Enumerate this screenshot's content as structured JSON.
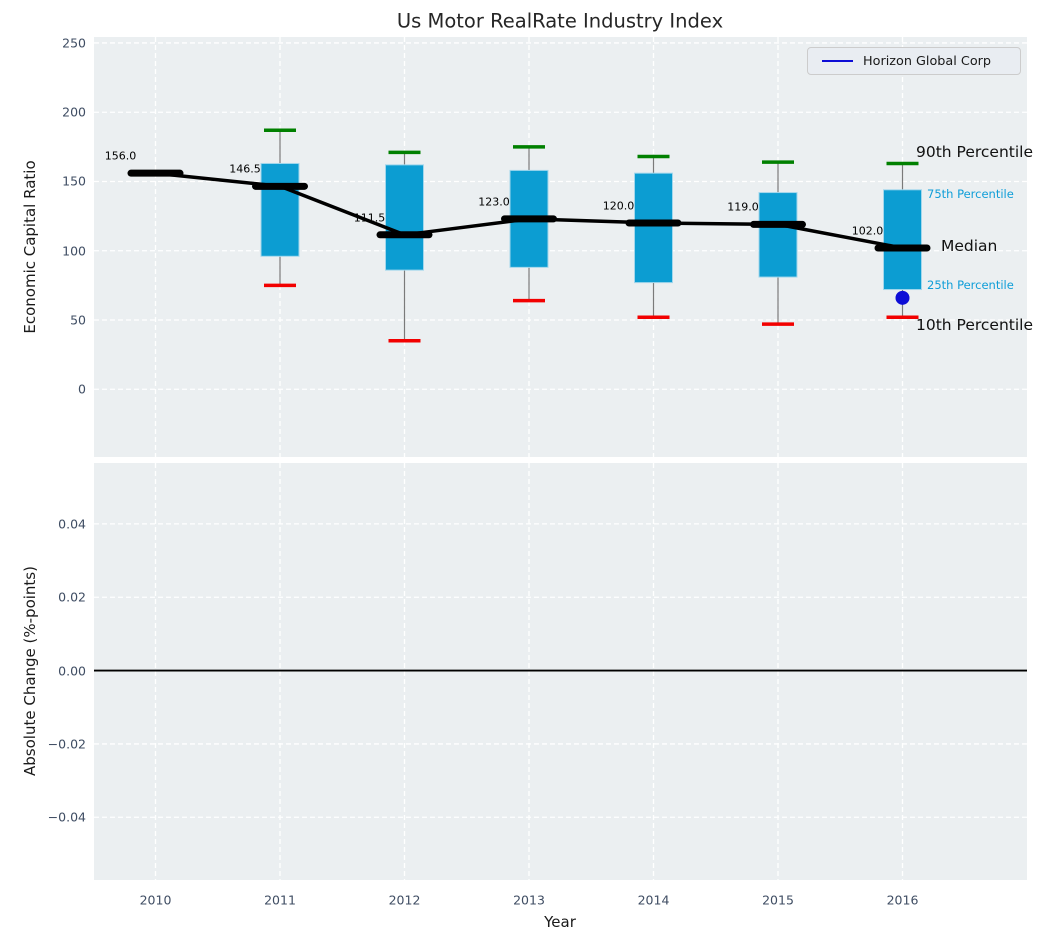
{
  "title": "Us Motor RealRate Industry Index",
  "legend": {
    "label": "Horizon Global Corp"
  },
  "axes": {
    "top": {
      "ylabel": "Economic Capital Ratio",
      "ytick_labels": [
        "0",
        "50",
        "100",
        "150",
        "200",
        "250"
      ],
      "ytick_values": [
        0,
        50,
        100,
        150,
        200,
        250
      ]
    },
    "bottom": {
      "ylabel": "Absolute Change (%-points)",
      "xlabel": "Year",
      "ytick_labels": [
        "0.04",
        "0.02",
        "0.00",
        "−0.02",
        "−0.04"
      ],
      "ytick_values": [
        0.04,
        0.02,
        0,
        -0.02,
        -0.04
      ],
      "xtick_labels": [
        "2010",
        "2011",
        "2012",
        "2013",
        "2014",
        "2015",
        "2016"
      ],
      "xtick_values": [
        2010,
        2011,
        2012,
        2013,
        2014,
        2015,
        2016
      ]
    }
  },
  "colors": {
    "plot_bg": "#ebeff1",
    "grid": "#ffffff",
    "box_fill": "#0c9dd2",
    "box_edge": "#a3d7ec",
    "whisker": "#7a7a7a",
    "cap_high": "#008000",
    "cap_low": "#f20000",
    "median": "#000000",
    "company": "#0d0dd6",
    "percentile_text": "#0f9ed8",
    "zero_line": "#000000"
  },
  "chart_data": [
    {
      "type": "box",
      "title": "Us Motor RealRate Industry Index",
      "xlabel": "",
      "ylabel": "Economic Capital Ratio",
      "categories": [
        2010,
        2011,
        2012,
        2013,
        2014,
        2015,
        2016
      ],
      "ylim": [
        -49,
        254
      ],
      "grid": true,
      "legend_position": "upper right",
      "boxes": [
        {
          "year": 2010,
          "median": 156.0,
          "label": "156.0",
          "p90": null,
          "p75": null,
          "p25": null,
          "p10": null
        },
        {
          "year": 2011,
          "median": 146.5,
          "label": "146.5",
          "p90": 187,
          "p75": 163,
          "p25": 96,
          "p10": 75
        },
        {
          "year": 2012,
          "median": 111.5,
          "label": "111.5",
          "p90": 171,
          "p75": 162,
          "p25": 86,
          "p10": 35
        },
        {
          "year": 2013,
          "median": 123.0,
          "label": "123.0",
          "p90": 175,
          "p75": 158,
          "p25": 88,
          "p10": 64
        },
        {
          "year": 2014,
          "median": 120.0,
          "label": "120.0",
          "p90": 168,
          "p75": 156,
          "p25": 77,
          "p10": 52
        },
        {
          "year": 2015,
          "median": 119.0,
          "label": "119.0",
          "p90": 164,
          "p75": 142,
          "p25": 81,
          "p10": 47
        },
        {
          "year": 2016,
          "median": 102.0,
          "label": "102.0",
          "p90": 163,
          "p75": 144,
          "p25": 72,
          "p10": 52
        }
      ],
      "series": [
        {
          "name": "Median",
          "values": [
            156.0,
            146.5,
            111.5,
            123.0,
            120.0,
            119.0,
            102.0
          ]
        },
        {
          "name": "Horizon Global Corp",
          "values": [
            null,
            null,
            null,
            null,
            null,
            null,
            66
          ]
        }
      ],
      "annotations": [
        {
          "text": "90th Percentile",
          "anchor_value": 163,
          "style": "large"
        },
        {
          "text": "75th Percentile",
          "anchor_value": 144,
          "style": "small"
        },
        {
          "text": "Median",
          "anchor_value": 102,
          "style": "large"
        },
        {
          "text": "25th Percentile",
          "anchor_value": 72,
          "style": "small"
        },
        {
          "text": "10th Percentile",
          "anchor_value": 52,
          "style": "large"
        }
      ]
    },
    {
      "type": "line",
      "xlabel": "Year",
      "ylabel": "Absolute Change (%-points)",
      "categories": [
        2010,
        2011,
        2012,
        2013,
        2014,
        2015,
        2016
      ],
      "ylim": [
        -0.057,
        0.057
      ],
      "grid": true,
      "zero_line": 0.0,
      "series": []
    }
  ]
}
